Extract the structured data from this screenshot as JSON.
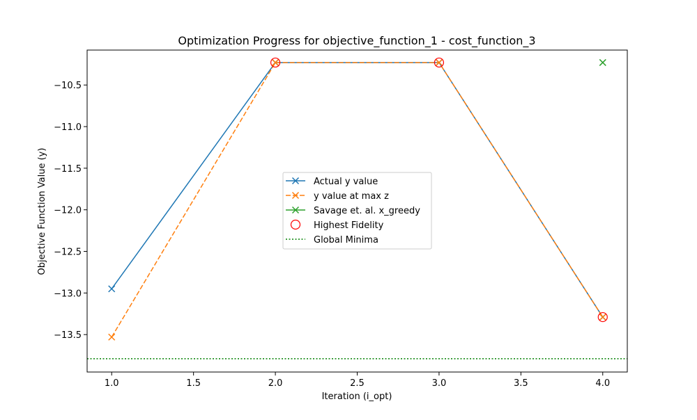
{
  "chart_data": {
    "type": "line",
    "title": "Optimization Progress for objective_function_1 - cost_function_3",
    "xlabel": "Iteration (i_opt)",
    "ylabel": "Objective Function Value (y)",
    "xlim": [
      0.85,
      4.15
    ],
    "ylim": [
      -13.95,
      -10.08
    ],
    "x_ticks": [
      1.0,
      1.5,
      2.0,
      2.5,
      3.0,
      3.5,
      4.0
    ],
    "x_tick_labels": [
      "1.0",
      "1.5",
      "2.0",
      "2.5",
      "3.0",
      "3.5",
      "4.0"
    ],
    "y_ticks": [
      -13.5,
      -13.0,
      -12.5,
      -12.0,
      -11.5,
      -11.0,
      -10.5
    ],
    "y_tick_labels": [
      "−13.5",
      "−13.0",
      "−12.5",
      "−12.0",
      "−11.5",
      "−11.0",
      "−10.5"
    ],
    "grid": false,
    "legend_position": "center",
    "series": [
      {
        "name": "Actual y value",
        "color": "#1f77b4",
        "line_style": "solid",
        "marker": "x",
        "x": [
          1,
          2,
          3,
          4
        ],
        "y": [
          -12.95,
          -10.23,
          -10.23,
          -13.29
        ]
      },
      {
        "name": "y value at max z",
        "color": "#ff7f0e",
        "line_style": "dashed",
        "marker": "x",
        "x": [
          1,
          2,
          3,
          4
        ],
        "y": [
          -13.53,
          -10.23,
          -10.23,
          -13.29
        ]
      },
      {
        "name": "Savage et. al. x_greedy",
        "color": "#2ca02c",
        "line_style": "solid",
        "marker": "x",
        "x": [
          4
        ],
        "y": [
          -10.23
        ]
      },
      {
        "name": "Highest Fidelity",
        "color": "#ff0000",
        "line_style": "none",
        "marker": "circle-open",
        "x": [
          2,
          3,
          4
        ],
        "y": [
          -10.23,
          -10.23,
          -13.29
        ]
      },
      {
        "name": "Global Minima",
        "color": "#008000",
        "line_style": "dotted",
        "marker": "none",
        "hline": -13.79
      }
    ]
  }
}
